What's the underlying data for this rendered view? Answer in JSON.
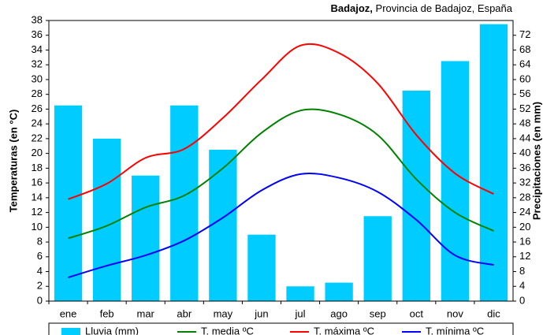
{
  "chart_data": {
    "type": "climate",
    "title_bold": "Badajoz,",
    "title": "Provincia de Badajoz, España",
    "ylabel": "Temperaturas (en °C)",
    "y2label": "Precipitaciones (en mm)",
    "categories": [
      "ene",
      "feb",
      "mar",
      "abr",
      "may",
      "jun",
      "jul",
      "ago",
      "sep",
      "oct",
      "nov",
      "dic"
    ],
    "ylim": [
      0,
      38
    ],
    "yticks": [
      0,
      2,
      4,
      6,
      8,
      10,
      12,
      14,
      16,
      18,
      20,
      22,
      24,
      26,
      28,
      30,
      32,
      34,
      36,
      38
    ],
    "y2lim": [
      0,
      76
    ],
    "y2ticks": [
      0,
      4,
      8,
      12,
      16,
      20,
      24,
      28,
      32,
      36,
      40,
      44,
      48,
      52,
      56,
      60,
      64,
      68,
      72
    ],
    "series": [
      {
        "name": "Lluvia (mm)",
        "kind": "bar",
        "axis": "y2",
        "color": "#00ccff",
        "values": [
          53,
          44,
          34,
          53,
          41,
          18,
          4,
          5,
          23,
          57,
          65,
          75
        ]
      },
      {
        "name": "T. media ºC",
        "kind": "line",
        "color": "#008000",
        "values": [
          8.5,
          10.2,
          12.7,
          14.3,
          18,
          22.8,
          25.8,
          25.3,
          22.5,
          16.5,
          12,
          9.5
        ]
      },
      {
        "name": "T. máxima ºC",
        "kind": "line",
        "color": "#ff0000",
        "values": [
          13.8,
          15.9,
          19.4,
          20.6,
          24.8,
          30,
          34.6,
          33.6,
          29.5,
          22.5,
          17.3,
          14.5
        ]
      },
      {
        "name": "T. mínima ºC",
        "kind": "line",
        "color": "#0000ff",
        "values": [
          3.2,
          4.8,
          6.2,
          8.2,
          11.3,
          15,
          17.2,
          16.7,
          14.8,
          11,
          6.2,
          4.9
        ]
      }
    ]
  }
}
